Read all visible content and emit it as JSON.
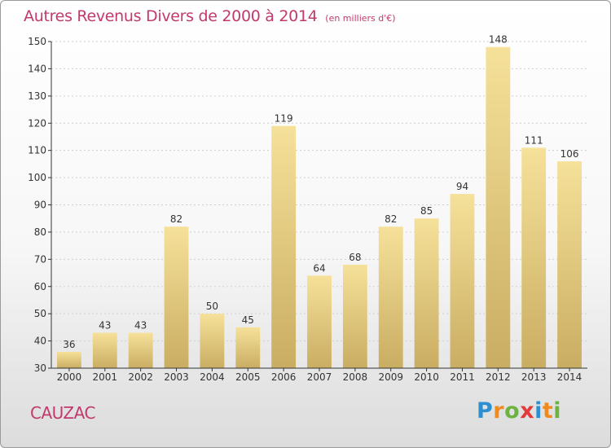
{
  "title": "Autres Revenus Divers de 2000 à 2014",
  "title_unit": "(en milliers d'€)",
  "commune": "CAUZAC",
  "brand": {
    "text": "Proxiti",
    "letters": [
      {
        "ch": "P",
        "color": "#2d8fd0"
      },
      {
        "ch": "r",
        "color": "#f08a1c"
      },
      {
        "ch": "o",
        "color": "#6db33f"
      },
      {
        "ch": "x",
        "color": "#e23b3b"
      },
      {
        "ch": "i",
        "color": "#2d8fd0"
      },
      {
        "ch": "t",
        "color": "#f08a1c"
      },
      {
        "ch": "i",
        "color": "#6db33f"
      }
    ]
  },
  "colors": {
    "title": "#c2396e",
    "bar_light": "#f6e19a",
    "bar_dark": "#c9ad62",
    "axis": "#333333",
    "grid": "#cfcfcf"
  },
  "chart_data": {
    "type": "bar",
    "categories": [
      "2000",
      "2001",
      "2002",
      "2003",
      "2004",
      "2005",
      "2006",
      "2007",
      "2008",
      "2009",
      "2010",
      "2011",
      "2012",
      "2013",
      "2014"
    ],
    "values": [
      36,
      43,
      43,
      82,
      50,
      45,
      119,
      64,
      68,
      82,
      85,
      94,
      148,
      111,
      106
    ],
    "ylim": [
      30,
      150
    ],
    "yticks": [
      30,
      40,
      50,
      60,
      70,
      80,
      90,
      100,
      110,
      120,
      130,
      140,
      150
    ],
    "grid": true,
    "data_labels": true
  }
}
